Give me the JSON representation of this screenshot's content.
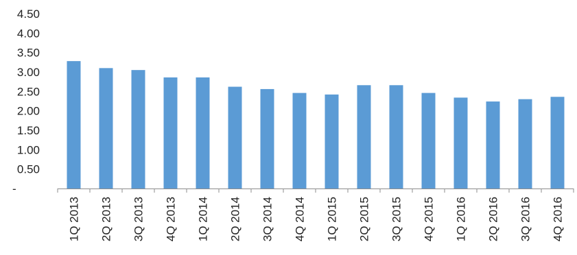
{
  "chart_data": {
    "type": "bar",
    "title": "",
    "xlabel": "",
    "ylabel": "",
    "categories": [
      "1Q 2013",
      "2Q 2013",
      "3Q 2013",
      "4Q 2013",
      "1Q 2014",
      "2Q 2014",
      "3Q 2014",
      "4Q 2014",
      "1Q 2015",
      "2Q 2015",
      "3Q 2015",
      "4Q 2015",
      "1Q 2016",
      "2Q 2016",
      "3Q 2016",
      "4Q 2016"
    ],
    "values": [
      3.28,
      3.1,
      3.05,
      2.86,
      2.86,
      2.62,
      2.56,
      2.46,
      2.42,
      2.66,
      2.66,
      2.46,
      2.34,
      2.24,
      2.3,
      2.36
    ],
    "ylim": [
      0,
      4.5
    ],
    "yticks": [
      "-",
      "0.50",
      "1.00",
      "1.50",
      "2.00",
      "2.50",
      "3.00",
      "3.50",
      "4.00",
      "4.50"
    ],
    "grid": false,
    "legend": "none",
    "bar_color": "#5b9bd5",
    "axis_color": "#8c8c8c"
  }
}
